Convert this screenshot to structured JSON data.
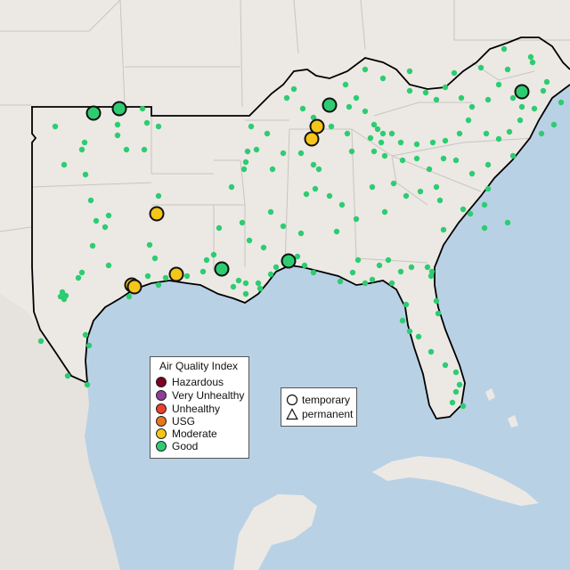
{
  "map": {
    "colors": {
      "ocean": "#b9d1e5",
      "land": "#ece9e5",
      "mexico_land": "#e6e3df",
      "state_line": "#c8c4c0",
      "region_outline": "#000000"
    }
  },
  "legend": {
    "title": "Air Quality Index",
    "categories": [
      {
        "label": "Hazardous",
        "color": "#7e0023"
      },
      {
        "label": "Very Unhealthy",
        "color": "#8f3f97"
      },
      {
        "label": "Unhealthy",
        "color": "#e8412c"
      },
      {
        "label": "USG",
        "color": "#e8781e"
      },
      {
        "label": "Moderate",
        "color": "#f5c518"
      },
      {
        "label": "Good",
        "color": "#2ecc71"
      }
    ]
  },
  "monitor_types": {
    "temporary": {
      "label": "temporary",
      "icon": "circle-icon"
    },
    "permanent": {
      "label": "permanent",
      "icon": "triangle-icon"
    }
  }
}
